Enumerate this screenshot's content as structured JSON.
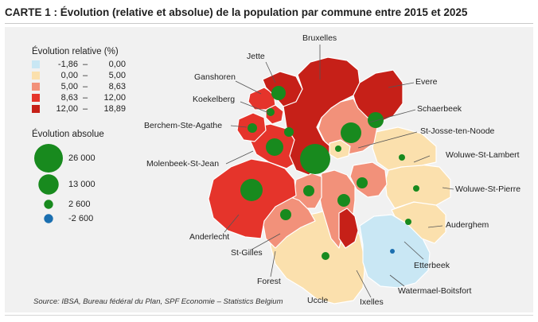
{
  "title": "CARTE 1 : Évolution (relative et absolue) de la population par commune entre 2015 et 2025",
  "source": "Source: IBSA, Bureau fédéral du Plan, SPF Economie – Statistics Belgium",
  "colors": {
    "class1": "#c9e7f4",
    "class2": "#fbe0ad",
    "class3": "#f2917a",
    "class4": "#e5342b",
    "class5": "#c62018",
    "circle": "#188a1e",
    "circle_neg": "#1b6fb0",
    "panel": "#f1f1f1"
  },
  "legend": {
    "relative_title": "Évolution relative (%)",
    "relative_classes": [
      {
        "lo": "-1,86",
        "hi": "0,00",
        "dash": "–",
        "color_key": "class1"
      },
      {
        "lo": "0,00",
        "hi": "5,00",
        "dash": "–",
        "color_key": "class2"
      },
      {
        "lo": "5,00",
        "hi": "8,63",
        "dash": "–",
        "color_key": "class3"
      },
      {
        "lo": "8,63",
        "hi": "12,00",
        "dash": "–",
        "color_key": "class4"
      },
      {
        "lo": "12,00",
        "hi": "18,89",
        "dash": "–",
        "color_key": "class5"
      }
    ],
    "absolute_title": "Évolution absolue",
    "absolute_sizes": [
      {
        "label": "26 000",
        "value": 26000
      },
      {
        "label": "13 000",
        "value": 13000
      },
      {
        "label": "2 600",
        "value": 2600
      },
      {
        "label": "-2 600",
        "value": -2600
      }
    ]
  },
  "communes": [
    {
      "id": "bruxelles",
      "label": "Bruxelles",
      "class": "class5"
    },
    {
      "id": "jette",
      "label": "Jette",
      "class": "class5"
    },
    {
      "id": "ganshoren",
      "label": "Ganshoren",
      "class": "class4"
    },
    {
      "id": "koekelberg",
      "label": "Koekelberg",
      "class": "class4"
    },
    {
      "id": "berchem",
      "label": "Berchem-Ste-Agathe",
      "class": "class4"
    },
    {
      "id": "molenbeek",
      "label": "Molenbeek-St-Jean",
      "class": "class4"
    },
    {
      "id": "anderlecht",
      "label": "Anderlecht",
      "class": "class4"
    },
    {
      "id": "st-gilles",
      "label": "St-Gilles",
      "class": "class3"
    },
    {
      "id": "forest",
      "label": "Forest",
      "class": "class3"
    },
    {
      "id": "uccle",
      "label": "Uccle",
      "class": "class2"
    },
    {
      "id": "ixelles",
      "label": "Ixelles",
      "class": "class3"
    },
    {
      "id": "watermael",
      "label": "Watermael-Boitsfort",
      "class": "class1"
    },
    {
      "id": "etterbeek",
      "label": "Etterbeek",
      "class": "class3"
    },
    {
      "id": "auderghem",
      "label": "Auderghem",
      "class": "class2"
    },
    {
      "id": "woluwe-st-pierre",
      "label": "Woluwe-St-Pierre",
      "class": "class2"
    },
    {
      "id": "woluwe-st-lambert",
      "label": "Woluwe-St-Lambert",
      "class": "class2"
    },
    {
      "id": "st-josse",
      "label": "St-Josse-ten-Noode",
      "class": "class2"
    },
    {
      "id": "schaerbeek",
      "label": "Schaerbeek",
      "class": "class3"
    },
    {
      "id": "evere",
      "label": "Evere",
      "class": "class5"
    }
  ]
}
